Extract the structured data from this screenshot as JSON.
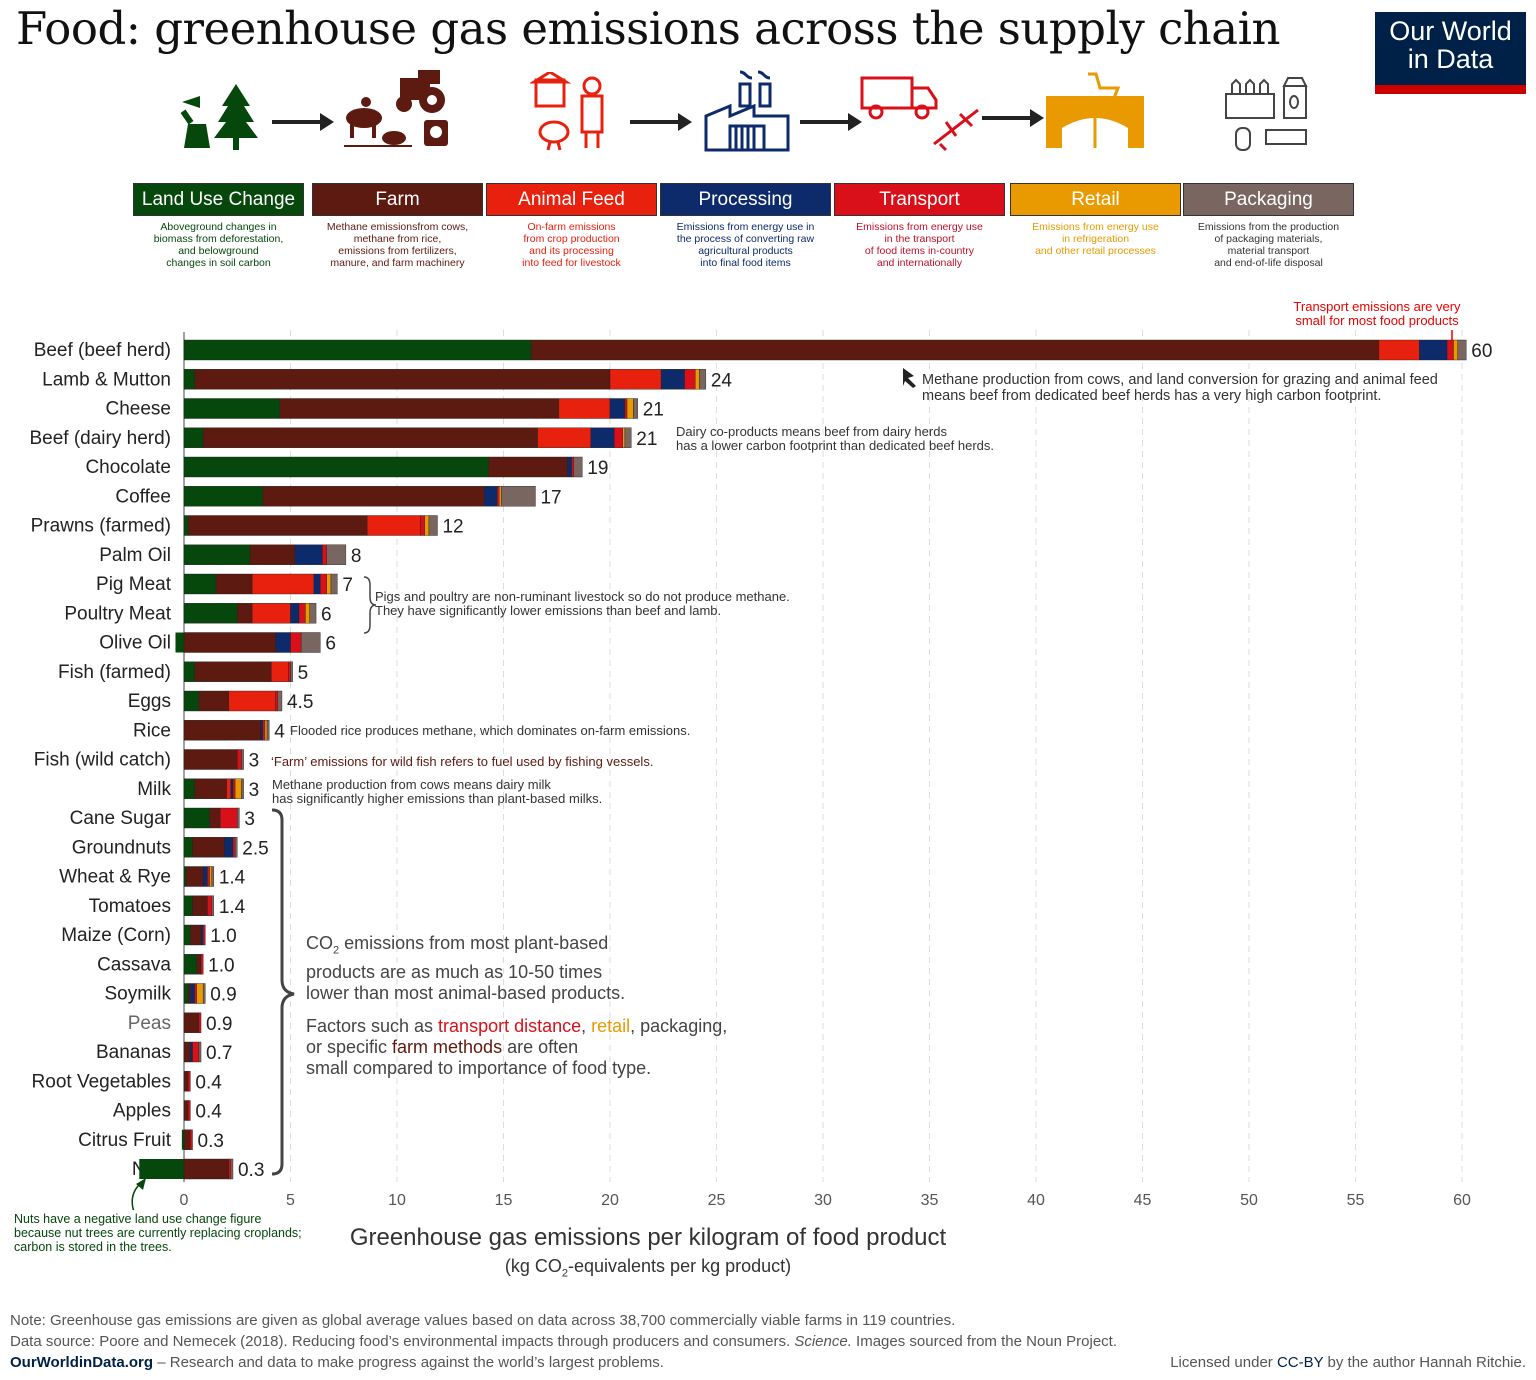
{
  "title": "Food: greenhouse gas emissions across the supply chain",
  "logo": {
    "line1": "Our World",
    "line2": "in Data"
  },
  "stages": [
    {
      "label": "Land Use Change",
      "color": "#06470c",
      "text_color": "#06470c",
      "desc": [
        "Aboveground changes in",
        "biomass from  deforestation,",
        "and belowground",
        "changes in soil carbon"
      ]
    },
    {
      "label": "Farm",
      "color": "#5c1a10",
      "text_color": "#5c1a10",
      "desc": [
        "Methane emissionsfrom cows,",
        "methane from rice,",
        "emissions from fertilizers,",
        "manure, and farm machinery"
      ]
    },
    {
      "label": "Animal Feed",
      "color": "#e8200e",
      "text_color": "#e8200e",
      "desc": [
        "On-farm emissions",
        "from crop production",
        "and its processing",
        "into feed for livestock"
      ]
    },
    {
      "label": "Processing",
      "color": "#0d2a6b",
      "text_color": "#0d2a6b",
      "desc": [
        "Emissions from energy use in",
        "the process of converting raw",
        "agricultural products",
        "into final food items"
      ]
    },
    {
      "label": "Transport",
      "color": "#d9101a",
      "text_color": "#c0102a",
      "desc": [
        "Emissions from energy use",
        "in the transport",
        "of food items in-country",
        "and internationally"
      ]
    },
    {
      "label": "Retail",
      "color": "#e89a00",
      "text_color": "#e89a00",
      "desc": [
        "Emissions from energy use",
        "in refrigeration",
        "and other retail processes"
      ]
    },
    {
      "label": "Packaging",
      "color": "#7a6660",
      "text_color": "#333333",
      "desc": [
        "Emissions from the production",
        "of packaging materials,",
        "material transport",
        "and end-of-life disposal"
      ]
    }
  ],
  "chart_data": {
    "type": "bar",
    "orientation": "horizontal",
    "stacked": true,
    "xlabel": "Greenhouse gas emissions per kilogram of food product",
    "xlabel_sub": "(kg CO2-equivalents per kg product)",
    "xlim": [
      0,
      60
    ],
    "xticks": [
      0,
      5,
      10,
      15,
      20,
      25,
      30,
      35,
      40,
      45,
      50,
      55,
      60
    ],
    "stack_order": [
      "Land Use Change",
      "Farm",
      "Animal Feed",
      "Processing",
      "Transport",
      "Retail",
      "Packaging"
    ],
    "categories": [
      {
        "name": "Beef (beef herd)",
        "total_label": "60",
        "values": [
          16.3,
          39.8,
          1.9,
          1.3,
          0.3,
          0.2,
          0.4
        ]
      },
      {
        "name": "Lamb & Mutton",
        "total_label": "24",
        "values": [
          0.5,
          19.5,
          2.4,
          1.1,
          0.5,
          0.2,
          0.3
        ]
      },
      {
        "name": "Cheese",
        "total_label": "21",
        "values": [
          4.5,
          13.1,
          2.4,
          0.7,
          0.1,
          0.3,
          0.2
        ]
      },
      {
        "name": "Beef (dairy herd)",
        "total_label": "21",
        "values": [
          0.9,
          15.7,
          2.5,
          1.1,
          0.4,
          0.1,
          0.3
        ]
      },
      {
        "name": "Chocolate",
        "total_label": "19",
        "values": [
          14.3,
          3.7,
          0,
          0.2,
          0.1,
          0,
          0.4
        ]
      },
      {
        "name": "Coffee",
        "total_label": "17",
        "values": [
          3.7,
          10.4,
          0,
          0.6,
          0.1,
          0.1,
          1.6
        ]
      },
      {
        "name": "Prawns (farmed)",
        "total_label": "12",
        "values": [
          0.2,
          8.4,
          2.5,
          0,
          0.2,
          0.2,
          0.4
        ]
      },
      {
        "name": "Palm Oil",
        "total_label": "8",
        "values": [
          3.1,
          2.1,
          0,
          1.3,
          0.2,
          0,
          0.9
        ]
      },
      {
        "name": "Pig Meat",
        "total_label": "7",
        "values": [
          1.5,
          1.7,
          2.9,
          0.3,
          0.3,
          0.2,
          0.3
        ]
      },
      {
        "name": "Poultry Meat",
        "total_label": "6",
        "values": [
          2.5,
          0.7,
          1.8,
          0.4,
          0.3,
          0.2,
          0.3
        ]
      },
      {
        "name": "Olive Oil",
        "total_label": "6",
        "values": [
          -0.4,
          4.3,
          0,
          0.7,
          0.5,
          0,
          0.9
        ]
      },
      {
        "name": "Fish (farmed)",
        "total_label": "5",
        "values": [
          0.5,
          3.6,
          0.8,
          0,
          0.1,
          0,
          0.1
        ]
      },
      {
        "name": "Eggs",
        "total_label": "4.5",
        "values": [
          0.7,
          1.4,
          2.2,
          0,
          0.1,
          0,
          0.2
        ]
      },
      {
        "name": "Rice",
        "total_label": "4",
        "values": [
          0,
          3.6,
          0,
          0.1,
          0.1,
          0.1,
          0.1
        ]
      },
      {
        "name": "Fish (wild catch)",
        "total_label": "3",
        "values": [
          0,
          2.5,
          0,
          0,
          0.2,
          0,
          0.1
        ]
      },
      {
        "name": "Milk",
        "total_label": "3",
        "values": [
          0.5,
          1.5,
          0.2,
          0.1,
          0.1,
          0.3,
          0.1
        ]
      },
      {
        "name": "Cane Sugar",
        "total_label": "3",
        "values": [
          1.2,
          0.5,
          0,
          0,
          0.8,
          0,
          0.1
        ]
      },
      {
        "name": "Groundnuts",
        "total_label": "2.5",
        "values": [
          0.4,
          1.5,
          0,
          0.4,
          0.1,
          0,
          0.1
        ]
      },
      {
        "name": "Wheat & Rye",
        "total_label": "1.4",
        "values": [
          0.1,
          0.8,
          0,
          0.2,
          0.1,
          0.1,
          0.1
        ]
      },
      {
        "name": "Tomatoes",
        "total_label": "1.4",
        "values": [
          0.4,
          0.7,
          0,
          0,
          0.2,
          0,
          0.1
        ]
      },
      {
        "name": "Maize (Corn)",
        "total_label": "1.0",
        "values": [
          0.3,
          0.5,
          0,
          0.1,
          0.1,
          0,
          0
        ]
      },
      {
        "name": "Cassava",
        "total_label": "1.0",
        "values": [
          0.6,
          0.2,
          0,
          0,
          0.1,
          0,
          0
        ]
      },
      {
        "name": "Soymilk",
        "total_label": "0.9",
        "values": [
          0.2,
          0.1,
          0,
          0.2,
          0.1,
          0.3,
          0.1
        ]
      },
      {
        "name": "Peas",
        "total_label": "0.9",
        "values": [
          0,
          0.7,
          0,
          0,
          0.1,
          0,
          0
        ]
      },
      {
        "name": "Bananas",
        "total_label": "0.7",
        "values": [
          0,
          0.3,
          0,
          0.1,
          0.3,
          0,
          0.1
        ]
      },
      {
        "name": "Root Vegetables",
        "total_label": "0.4",
        "values": [
          0,
          0.2,
          0,
          0,
          0.1,
          0,
          0
        ]
      },
      {
        "name": "Apples",
        "total_label": "0.4",
        "values": [
          0,
          0.2,
          0,
          0,
          0.1,
          0,
          0
        ]
      },
      {
        "name": "Citrus Fruit",
        "total_label": "0.3",
        "values": [
          -0.1,
          0.3,
          0,
          0,
          0.1,
          0,
          0
        ]
      },
      {
        "name": "Nuts",
        "total_label": "0.3",
        "values": [
          -2.1,
          2.1,
          0,
          0,
          0.1,
          0,
          0.1
        ]
      }
    ]
  },
  "annotations": {
    "transport_note": [
      "Transport emissions are very",
      "small for most food products"
    ],
    "beef_note": [
      "Methane production from cows, and land conversion for grazing and animal feed",
      "means beef from dedicated beef herds has a very high carbon footprint."
    ],
    "dairy_note": [
      "Dairy co-products means beef from dairy herds",
      "has a lower carbon footprint than dedicated beef herds."
    ],
    "pig_note": [
      "Pigs and poultry are non-ruminant livestock so do not produce methane.",
      "They have significantly lower emissions than beef and lamb."
    ],
    "rice_note": "Flooded rice produces methane, which dominates on-farm emissions.",
    "fish_note": "‘Farm’ emissions for wild fish refers to fuel used by fishing vessels.",
    "milk_note": [
      "Methane production from cows means dairy milk",
      "has significantly higher emissions than plant-based milks."
    ],
    "plant_note_pre": "CO",
    "plant_note_sub": "2",
    "plant_note_post": " emissions from most plant-based",
    "plant_note_lines": [
      "products are as much as 10-50 times",
      "lower than most animal-based products."
    ],
    "factors_a": "Factors such as ",
    "factors_transport": "transport distance",
    "factors_b": ", ",
    "factors_retail": "retail",
    "factors_c": ", packaging,",
    "factors_line2_a": "or specific ",
    "factors_farm": "farm methods",
    "factors_line2_b": " are often",
    "factors_line3": "small compared to importance of food type.",
    "nuts_note": [
      "Nuts have a negative land use change figure",
      "because nut trees are currently replacing croplands;",
      "carbon is stored in the trees."
    ]
  },
  "axis": {
    "title": "Greenhouse gas emissions per kilogram of food product",
    "sub_pre": "(kg CO",
    "sub_sub": "2",
    "sub_post": "-equivalents per kg product)"
  },
  "footer": {
    "note": "Note: Greenhouse gas emissions are given as global average values based on data across 38,700 commercially viable farms in 119 countries.",
    "source_a": "Data source: Poore and Nemecek (2018). Reducing food’s environmental impacts through producers and consumers. ",
    "source_journal": "Science.",
    "source_b": " Images sourced from the Noun Project.",
    "site": "OurWorldinData.org",
    "tagline": " – Research and data to make progress against the world’s largest problems.",
    "license_a": "Licensed under ",
    "license_link": "CC-BY",
    "license_b": " by the author Hannah Ritchie."
  }
}
